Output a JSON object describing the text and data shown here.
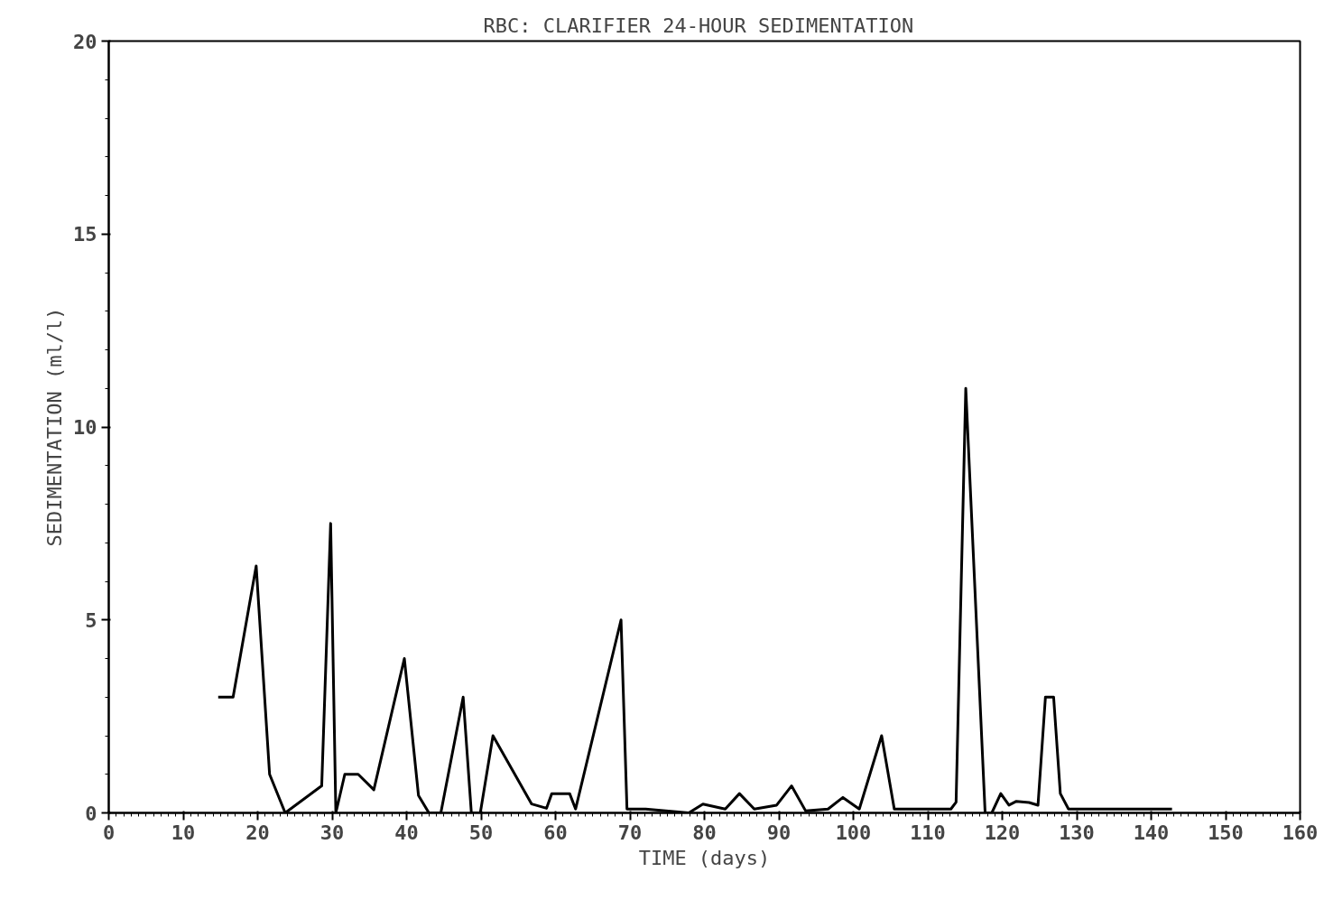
{
  "chart_data": {
    "type": "line",
    "title": "RBC:  CLARIFIER 24-HOUR SEDIMENTATION",
    "xlabel": "TIME (days)",
    "ylabel": "SEDIMENTATION (ml/l)",
    "x": [
      14.7,
      16.7,
      19.8,
      21.6,
      23.7,
      28.6,
      29.8,
      30.5,
      31.7,
      33.5,
      35.6,
      39.7,
      41.6,
      43.0,
      44.6,
      47.6,
      48.7,
      49.9,
      51.6,
      56.8,
      58.8,
      59.5,
      61.9,
      62.7,
      68.8,
      69.6,
      72.1,
      77.9,
      79.8,
      82.8,
      84.7,
      86.7,
      89.7,
      91.7,
      93.6,
      96.6,
      98.6,
      100.8,
      103.8,
      105.5,
      113.1,
      113.8,
      115.1,
      117.7,
      118.6,
      119.8,
      120.9,
      121.9,
      123.6,
      124.8,
      125.8,
      126.9,
      127.8,
      128.9,
      131.9,
      142.8
    ],
    "series": [
      {
        "color": "#000000",
        "values": [
          3.0,
          3.0,
          6.4,
          1.0,
          0,
          0.7,
          7.5,
          0,
          1.0,
          1.0,
          0.6,
          4.0,
          0.45,
          0,
          0,
          3.0,
          0,
          0,
          2.0,
          0.23,
          0.12,
          0.5,
          0.5,
          0.1,
          5.0,
          0.1,
          0.1,
          0,
          0.23,
          0.1,
          0.5,
          0.1,
          0.2,
          0.7,
          0.05,
          0.1,
          0.4,
          0.1,
          2.0,
          0.1,
          0.1,
          0.28,
          11.0,
          0,
          0,
          0.5,
          0.2,
          0.3,
          0.27,
          0.2,
          3.0,
          3.0,
          0.5,
          0.1,
          0.1,
          0.1
        ]
      }
    ],
    "xlim": [
      0,
      160
    ],
    "ylim": [
      0,
      20
    ],
    "xticks": [
      0,
      10,
      20,
      30,
      40,
      50,
      60,
      70,
      80,
      90,
      100,
      110,
      120,
      130,
      140,
      150,
      160
    ],
    "yticks": [
      0,
      5,
      10,
      15,
      20
    ],
    "grid": false,
    "line_style": "solid",
    "marker": "none"
  }
}
